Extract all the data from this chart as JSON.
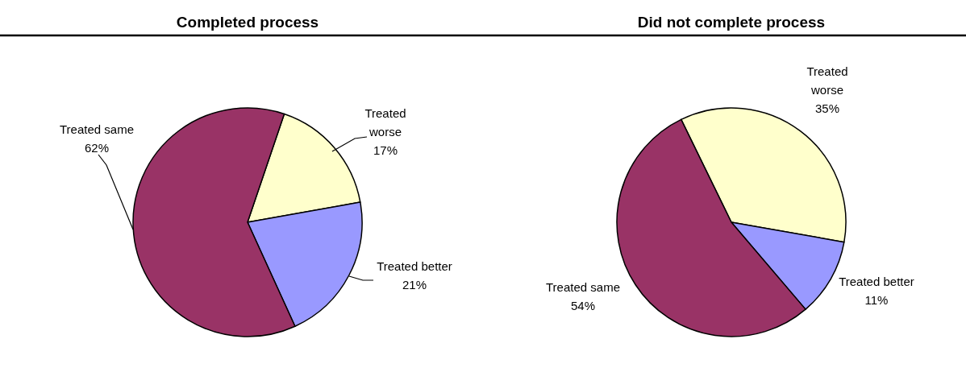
{
  "chart_data": [
    {
      "type": "pie",
      "title": "Completed process",
      "categories": [
        "Treated worse",
        "Treated better",
        "Treated same"
      ],
      "values": [
        17,
        21,
        62
      ],
      "colors": [
        "#ffffcc",
        "#9999ff",
        "#993366"
      ],
      "value_labels": [
        "17%",
        "21%",
        "62%"
      ]
    },
    {
      "type": "pie",
      "title": "Did not complete process",
      "categories": [
        "Treated worse",
        "Treated better",
        "Treated same"
      ],
      "values": [
        35,
        11,
        54
      ],
      "colors": [
        "#ffffcc",
        "#9999ff",
        "#993366"
      ],
      "value_labels": [
        "35%",
        "11%",
        "54%"
      ]
    }
  ]
}
